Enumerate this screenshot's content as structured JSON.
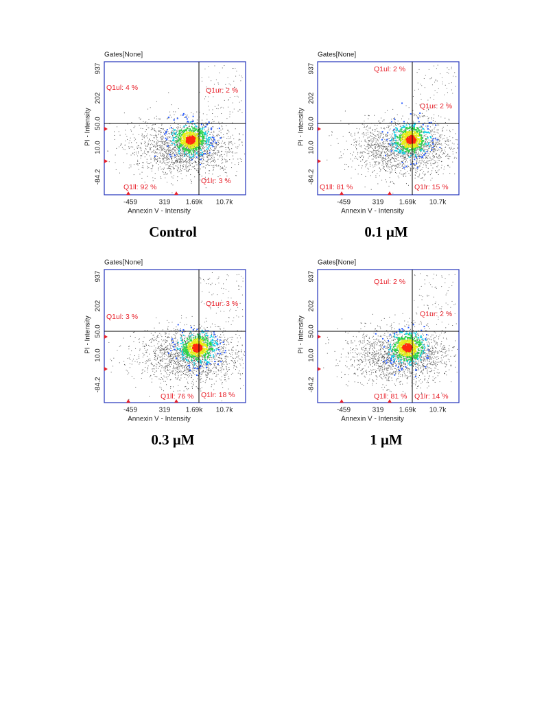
{
  "panels": [
    {
      "gates": "Gates[None]",
      "y_axis": "PI - Intensity",
      "x_axis": "Annexin V - Intensity",
      "yticks": [
        "937",
        "202",
        "50.0",
        "10.0",
        "-84.2"
      ],
      "xticks": [
        "-459",
        "319",
        "1.69k",
        "10.7k"
      ],
      "quadrants": {
        "ul": "Q1ul: 4 %",
        "ur": "Q1ur: 2 %",
        "ll": "Q1ll: 92 %",
        "lr": "Q1lr: 3 %"
      },
      "caption": "Control"
    },
    {
      "gates": "Gates[None]",
      "y_axis": "PI - Intensity",
      "x_axis": "Annexin V - Intensity",
      "yticks": [
        "937",
        "202",
        "50.0",
        "10.0",
        "-84.2"
      ],
      "xticks": [
        "-459",
        "319",
        "1.69k",
        "10.7k"
      ],
      "quadrants": {
        "ul": "Q1ul: 2 %",
        "ur": "Q1ur: 2 %",
        "ll": "Q1ll: 81 %",
        "lr": "Q1lr: 15 %"
      },
      "caption": "0.1 μM"
    },
    {
      "gates": "Gates[None]",
      "y_axis": "PI - Intensity",
      "x_axis": "Annexin V - Intensity",
      "yticks": [
        "937",
        "202",
        "50.0",
        "10.0",
        "-84.2"
      ],
      "xticks": [
        "-459",
        "319",
        "1.69k",
        "10.7k"
      ],
      "quadrants": {
        "ul": "Q1ul: 3 %",
        "ur": "Q1ur: 3 %",
        "ll": "Q1ll: 76 %",
        "lr": "Q1lr: 18 %"
      },
      "caption": "0.3 μM"
    },
    {
      "gates": "Gates[None]",
      "y_axis": "PI - Intensity",
      "x_axis": "Annexin V - Intensity",
      "yticks": [
        "937",
        "202",
        "50.0",
        "10.0",
        "-84.2"
      ],
      "xticks": [
        "-459",
        "319",
        "1.69k",
        "10.7k"
      ],
      "quadrants": {
        "ul": "Q1ul: 2 %",
        "ur": "Q1ur: 2 %",
        "ll": "Q1ll: 81 %",
        "lr": "Q1lr: 14 %"
      },
      "caption": "1 μM"
    }
  ]
}
